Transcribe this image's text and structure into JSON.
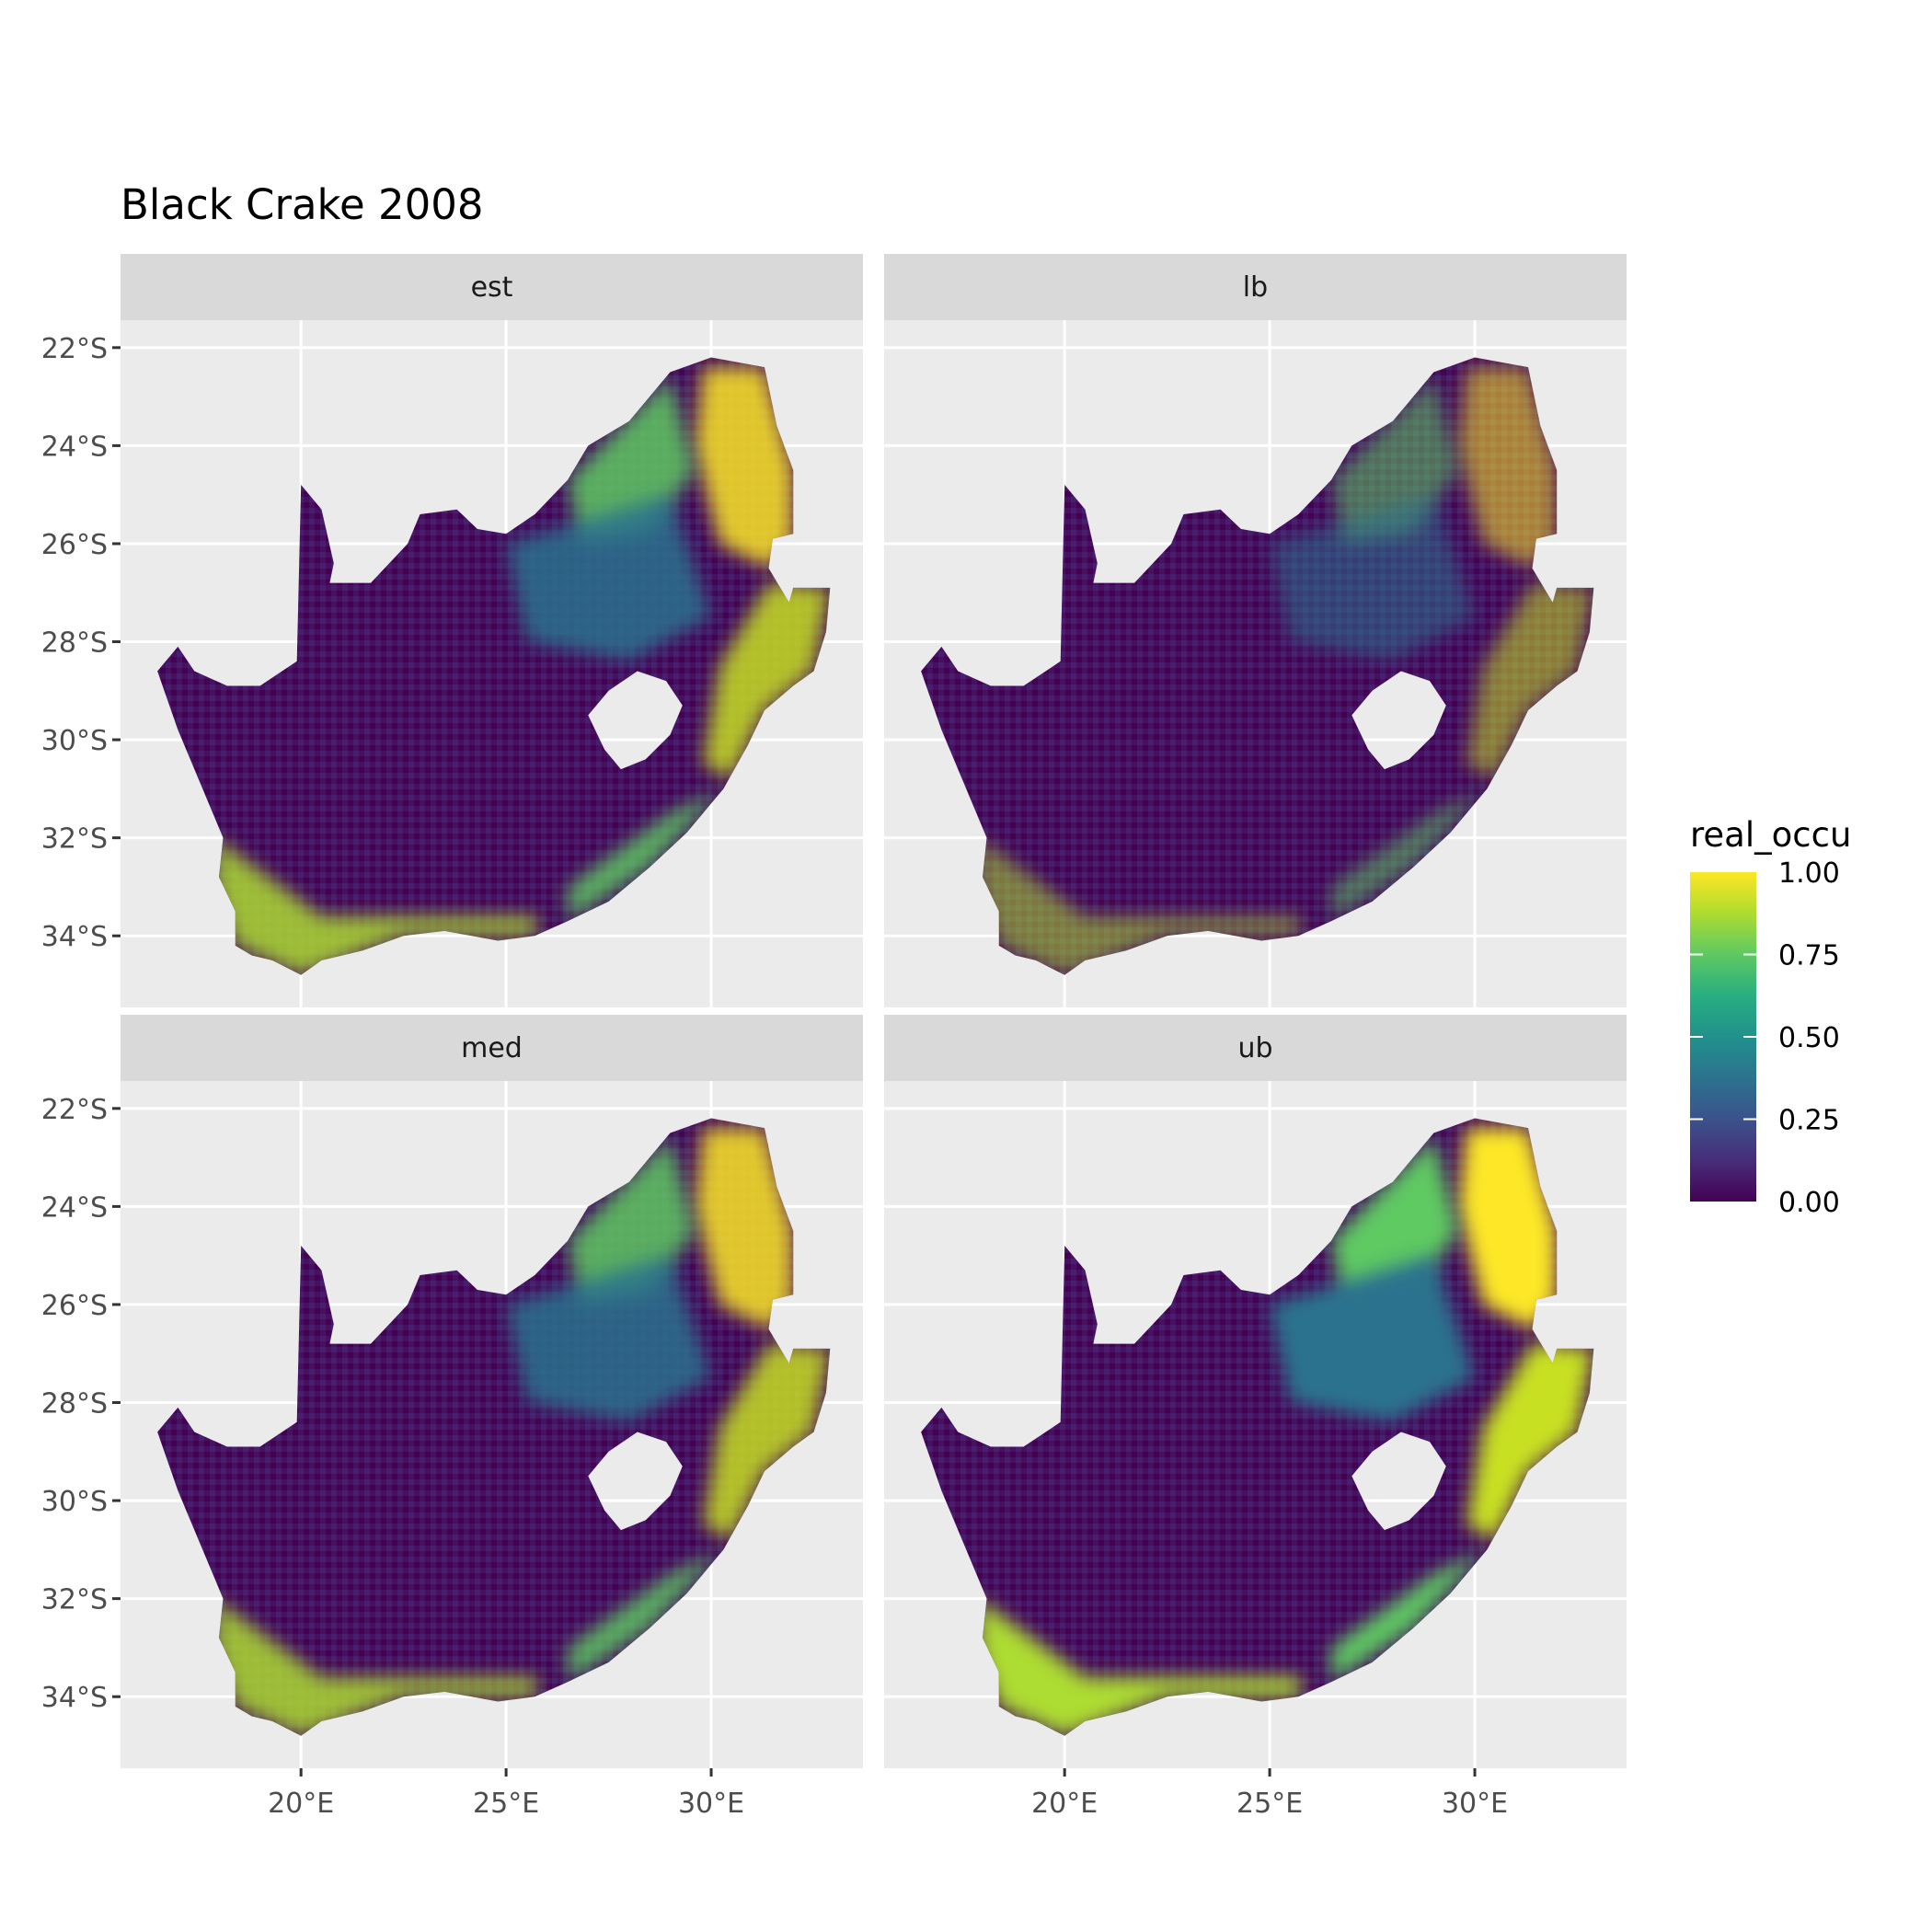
{
  "chart_data": {
    "type": "heatmap",
    "title": "Black Crake 2008",
    "facets": [
      "est",
      "lb",
      "med",
      "ub"
    ],
    "x_ticks": [
      20,
      25,
      30
    ],
    "x_tick_labels": [
      "20°E",
      "25°E",
      "30°E"
    ],
    "y_ticks": [
      -22,
      -24,
      -26,
      -28,
      -30,
      -32,
      -34
    ],
    "y_tick_labels": [
      "22°S",
      "24°S",
      "26°S",
      "28°S",
      "30°S",
      "32°S",
      "34°S"
    ],
    "xlim": [
      15.6,
      33.7
    ],
    "ylim": [
      -35.46,
      -21.44
    ],
    "grid": true,
    "legend": {
      "title": "real_occu",
      "position": "right",
      "colormap": "viridis",
      "range": [
        0,
        1
      ],
      "breaks": [
        0,
        0.25,
        0.5,
        0.75,
        1
      ],
      "labels": [
        "0.00",
        "0.25",
        "0.50",
        "0.75",
        "1.00"
      ],
      "colors": [
        "#440154",
        "#3b528b",
        "#21918c",
        "#5ec962",
        "#fde725"
      ]
    }
  }
}
